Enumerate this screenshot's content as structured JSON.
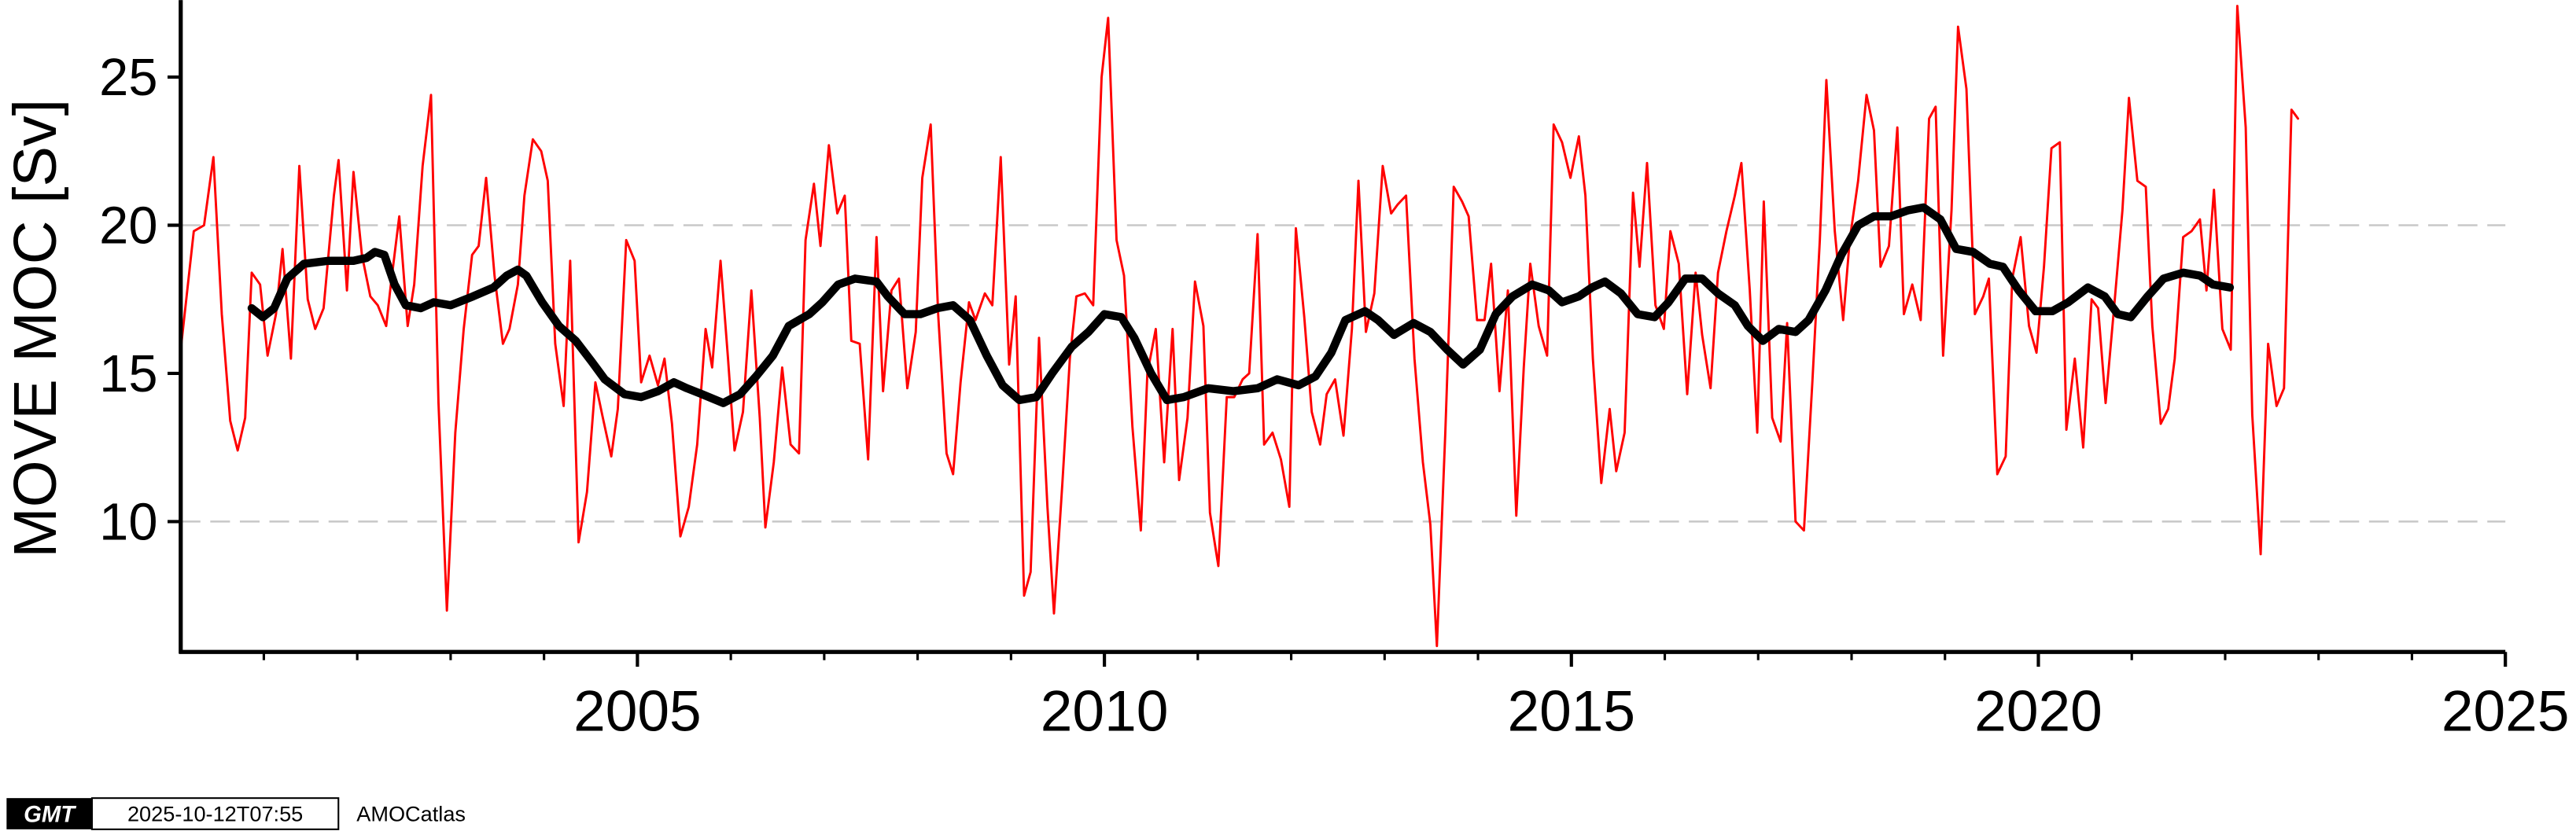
{
  "chart_data": {
    "type": "line",
    "ylabel": "MOVE MOC [Sv]",
    "xlim": [
      2000.11,
      2025
    ],
    "xticks": [
      2005,
      2010,
      2015,
      2020,
      2025
    ],
    "xminorticks": [
      2001,
      2002,
      2003,
      2004,
      2006,
      2007,
      2008,
      2009,
      2011,
      2012,
      2013,
      2014,
      2016,
      2017,
      2018,
      2019,
      2021,
      2022,
      2023,
      2024
    ],
    "ylim": [
      5.6,
      27.6
    ],
    "yticks": [
      10,
      15,
      20,
      25
    ],
    "grid": true,
    "grid_ticks": [
      10,
      20
    ],
    "series": [
      {
        "color": "#ff0000",
        "x": [
          2000.11,
          2000.25,
          2000.36,
          2000.46,
          2000.55,
          2000.64,
          2000.72,
          2000.8,
          2000.87,
          2000.96,
          2001.04,
          2001.13,
          2001.2,
          2001.29,
          2001.38,
          2001.47,
          2001.55,
          2001.64,
          2001.75,
          2001.8,
          2001.89,
          2001.96,
          2002.05,
          2002.14,
          2002.22,
          2002.31,
          2002.36,
          2002.45,
          2002.54,
          2002.61,
          2002.7,
          2002.79,
          2002.87,
          2002.96,
          2003.05,
          2003.14,
          2003.23,
          2003.3,
          2003.38,
          2003.47,
          2003.56,
          2003.63,
          2003.72,
          2003.79,
          2003.88,
          2003.97,
          2004.04,
          2004.12,
          2004.21,
          2004.28,
          2004.37,
          2004.46,
          2004.55,
          2004.63,
          2004.72,
          2004.79,
          2004.88,
          2004.97,
          2005.04,
          2005.13,
          2005.22,
          2005.29,
          2005.37,
          2005.46,
          2005.55,
          2005.64,
          2005.73,
          2005.8,
          2005.89,
          2005.97,
          2006.04,
          2006.13,
          2006.22,
          2006.31,
          2006.37,
          2006.46,
          2006.55,
          2006.64,
          2006.73,
          2006.8,
          2006.89,
          2006.96,
          2007.05,
          2007.14,
          2007.22,
          2007.29,
          2007.38,
          2007.47,
          2007.56,
          2007.63,
          2007.72,
          2007.8,
          2007.89,
          2007.98,
          2008.05,
          2008.14,
          2008.22,
          2008.31,
          2008.38,
          2008.46,
          2008.55,
          2008.62,
          2008.72,
          2008.8,
          2008.89,
          2008.98,
          2009.05,
          2009.14,
          2009.21,
          2009.3,
          2009.39,
          2009.46,
          2009.55,
          2009.63,
          2009.7,
          2009.79,
          2009.88,
          2009.97,
          2010.04,
          2010.13,
          2010.21,
          2010.3,
          2010.39,
          2010.46,
          2010.55,
          2010.64,
          2010.73,
          2010.8,
          2010.89,
          2010.97,
          2011.06,
          2011.13,
          2011.22,
          2011.31,
          2011.39,
          2011.48,
          2011.55,
          2011.64,
          2011.71,
          2011.8,
          2011.89,
          2011.98,
          2012.05,
          2012.14,
          2012.22,
          2012.31,
          2012.38,
          2012.47,
          2012.56,
          2012.65,
          2012.72,
          2012.8,
          2012.89,
          2012.98,
          2013.07,
          2013.14,
          2013.23,
          2013.32,
          2013.41,
          2013.49,
          2013.56,
          2013.65,
          2013.74,
          2013.83,
          2013.9,
          2013.99,
          2014.07,
          2014.14,
          2014.23,
          2014.32,
          2014.41,
          2014.49,
          2014.56,
          2014.65,
          2014.74,
          2014.81,
          2014.9,
          2014.99,
          2015.08,
          2015.15,
          2015.23,
          2015.32,
          2015.41,
          2015.48,
          2015.57,
          2015.66,
          2015.73,
          2015.81,
          2015.9,
          2015.99,
          2016.06,
          2016.15,
          2016.24,
          2016.33,
          2016.4,
          2016.49,
          2016.57,
          2016.66,
          2016.75,
          2016.82,
          2016.91,
          2016.99,
          2017.06,
          2017.15,
          2017.24,
          2017.31,
          2017.4,
          2017.49,
          2017.58,
          2017.66,
          2017.73,
          2017.82,
          2017.91,
          2017.98,
          2018.07,
          2018.16,
          2018.24,
          2018.31,
          2018.4,
          2018.49,
          2018.56,
          2018.65,
          2018.74,
          2018.83,
          2018.9,
          2018.98,
          2019.07,
          2019.14,
          2019.23,
          2019.32,
          2019.41,
          2019.47,
          2019.56,
          2019.65,
          2019.72,
          2019.81,
          2019.9,
          2019.98,
          2020.06,
          2020.14,
          2020.23,
          2020.3,
          2020.39,
          2020.48,
          2020.57,
          2020.64,
          2020.72,
          2020.81,
          2020.9,
          2020.97,
          2021.06,
          2021.15,
          2021.22,
          2021.31,
          2021.39,
          2021.46,
          2021.55,
          2021.64,
          2021.73,
          2021.8,
          2021.88,
          2021.97,
          2022.06,
          2022.13,
          2022.22,
          2022.29,
          2022.38,
          2022.46,
          2022.55,
          2022.63,
          2022.71,
          2022.78
        ],
        "values": [
          15.8,
          19.8,
          20,
          22.3,
          17,
          13.4,
          12.4,
          13.5,
          18.4,
          18,
          15.6,
          17,
          19.2,
          15.5,
          22,
          17.5,
          16.5,
          17.2,
          21,
          22.2,
          17.8,
          21.8,
          19,
          17.6,
          17.3,
          16.6,
          18,
          20.3,
          16.6,
          18,
          22,
          24.4,
          14,
          7,
          13,
          16.5,
          19,
          19.3,
          21.6,
          18.3,
          16,
          16.5,
          18,
          21,
          22.9,
          22.5,
          21.5,
          16,
          13.9,
          18.8,
          9.3,
          11,
          14.7,
          13.5,
          12.2,
          13.8,
          19.5,
          18.8,
          14.7,
          15.6,
          14.6,
          15.5,
          13.3,
          9.5,
          10.5,
          12.6,
          16.5,
          15.2,
          18.8,
          15.5,
          12.4,
          13.7,
          17.8,
          13.5,
          9.8,
          12,
          15.2,
          12.6,
          12.3,
          19.5,
          21.4,
          19.3,
          22.7,
          20.4,
          21,
          16.1,
          16,
          12.1,
          19.6,
          14.4,
          17.8,
          18.2,
          14.5,
          16.4,
          21.6,
          23.4,
          17,
          12.3,
          11.6,
          14.7,
          17.4,
          16.8,
          17.7,
          17.3,
          22.3,
          15.3,
          17.6,
          7.5,
          8.3,
          16.2,
          10.5,
          6.9,
          11.3,
          15.5,
          17.6,
          17.7,
          17.3,
          25,
          27,
          19.5,
          18.3,
          13.2,
          9.7,
          15,
          16.5,
          12,
          16.5,
          11.4,
          13.5,
          18.1,
          16.6,
          10.3,
          8.5,
          14.2,
          14.2,
          14.8,
          15,
          19.7,
          12.6,
          13,
          12.1,
          10.5,
          19.9,
          16.9,
          13.7,
          12.6,
          14.3,
          14.8,
          12.9,
          16.5,
          21.5,
          16.4,
          17.7,
          22,
          20.4,
          20.7,
          21,
          15.5,
          12,
          9.9,
          5.8,
          13,
          21.3,
          20.8,
          20.3,
          16.8,
          16.8,
          18.7,
          14.4,
          17.8,
          10.2,
          15.2,
          18.7,
          16.6,
          15.6,
          23.4,
          22.8,
          21.6,
          23,
          21,
          15.5,
          11.3,
          13.8,
          11.7,
          13,
          21.1,
          18.6,
          22.1,
          17.3,
          16.5,
          19.8,
          18.7,
          14.3,
          18.4,
          16.3,
          14.5,
          18.4,
          19.8,
          21,
          22.1,
          17.8,
          13,
          20.8,
          13.5,
          12.7,
          16.7,
          10,
          9.7,
          14.7,
          19.5,
          24.9,
          19.8,
          16.8,
          19.5,
          21.5,
          24.4,
          23.2,
          18.6,
          19.3,
          23.3,
          17,
          18,
          16.8,
          23.6,
          24,
          15.6,
          20.5,
          26.7,
          24.6,
          17,
          17.6,
          18.2,
          11.6,
          12.2,
          18.2,
          19.6,
          16.6,
          15.7,
          18.6,
          22.6,
          22.8,
          13.1,
          15.5,
          12.5,
          17.5,
          17.2,
          14,
          17.2,
          20.5,
          24.3,
          21.5,
          21.3,
          16.6,
          13.3,
          13.8,
          15.5,
          19.6,
          19.8,
          20.2,
          17.8,
          21.2,
          16.5,
          15.8,
          27.4,
          23.3,
          13.6,
          8.9,
          16,
          13.9,
          14.5,
          23.9,
          23.6
        ]
      },
      {
        "color": "#000000",
        "x": [
          2000.87,
          2000.99,
          2001.11,
          2001.25,
          2001.43,
          2001.69,
          2001.96,
          2002.1,
          2002.19,
          2002.29,
          2002.4,
          2002.52,
          2002.68,
          2002.82,
          2003,
          2003.24,
          2003.46,
          2003.6,
          2003.72,
          2003.81,
          2003.98,
          2004.16,
          2004.34,
          2004.51,
          2004.65,
          2004.86,
          2005.04,
          2005.22,
          2005.39,
          2005.53,
          2005.69,
          2005.92,
          2006.1,
          2006.27,
          2006.45,
          2006.62,
          2006.84,
          2006.98,
          2007.15,
          2007.33,
          2007.56,
          2007.68,
          2007.86,
          2008.03,
          2008.21,
          2008.38,
          2008.56,
          2008.74,
          2008.91,
          2009.09,
          2009.27,
          2009.44,
          2009.65,
          2009.83,
          2010,
          2010.18,
          2010.32,
          2010.5,
          2010.67,
          2010.85,
          2011.11,
          2011.38,
          2011.64,
          2011.85,
          2012.08,
          2012.26,
          2012.43,
          2012.58,
          2012.79,
          2012.93,
          2013.1,
          2013.31,
          2013.49,
          2013.67,
          2013.84,
          2014.02,
          2014.19,
          2014.37,
          2014.58,
          2014.76,
          2014.9,
          2015.08,
          2015.22,
          2015.36,
          2015.53,
          2015.71,
          2015.89,
          2016.04,
          2016.22,
          2016.4,
          2016.57,
          2016.75,
          2016.89,
          2017.05,
          2017.22,
          2017.4,
          2017.54,
          2017.72,
          2017.89,
          2018.07,
          2018.24,
          2018.42,
          2018.6,
          2018.77,
          2018.95,
          2019.12,
          2019.3,
          2019.48,
          2019.62,
          2019.79,
          2019.97,
          2020.15,
          2020.32,
          2020.53,
          2020.71,
          2020.85,
          2020.99,
          2021.17,
          2021.34,
          2021.55,
          2021.73,
          2021.87,
          2022.05
        ],
        "values": [
          17.2,
          16.9,
          17.2,
          18.2,
          18.7,
          18.8,
          18.8,
          18.9,
          19.1,
          19,
          18,
          17.3,
          17.2,
          17.4,
          17.3,
          17.6,
          17.9,
          18.3,
          18.5,
          18.3,
          17.4,
          16.6,
          16.1,
          15.4,
          14.8,
          14.3,
          14.2,
          14.4,
          14.7,
          14.5,
          14.3,
          14,
          14.3,
          14.9,
          15.6,
          16.6,
          17,
          17.4,
          18,
          18.2,
          18.1,
          17.6,
          17,
          17,
          17.2,
          17.3,
          16.8,
          15.6,
          14.6,
          14.1,
          14.2,
          15,
          15.9,
          16.4,
          17,
          16.9,
          16.2,
          15,
          14.1,
          14.2,
          14.5,
          14.4,
          14.5,
          14.8,
          14.6,
          14.9,
          15.7,
          16.8,
          17.1,
          16.8,
          16.3,
          16.7,
          16.4,
          15.8,
          15.3,
          15.8,
          17,
          17.6,
          18,
          17.8,
          17.4,
          17.6,
          17.9,
          18.1,
          17.7,
          17,
          16.9,
          17.4,
          18.2,
          18.2,
          17.7,
          17.3,
          16.6,
          16.1,
          16.5,
          16.4,
          16.8,
          17.8,
          19,
          20,
          20.3,
          20.3,
          20.5,
          20.6,
          20.2,
          19.2,
          19.1,
          18.7,
          18.6,
          17.8,
          17.1,
          17.1,
          17.4,
          17.9,
          17.6,
          17,
          16.9,
          17.6,
          18.2,
          18.4,
          18.3,
          18,
          17.9
        ]
      }
    ]
  },
  "footer": {
    "logo": "GMT",
    "timestamp": "2025-10-12T07:55",
    "source": "AMOCatlas"
  }
}
